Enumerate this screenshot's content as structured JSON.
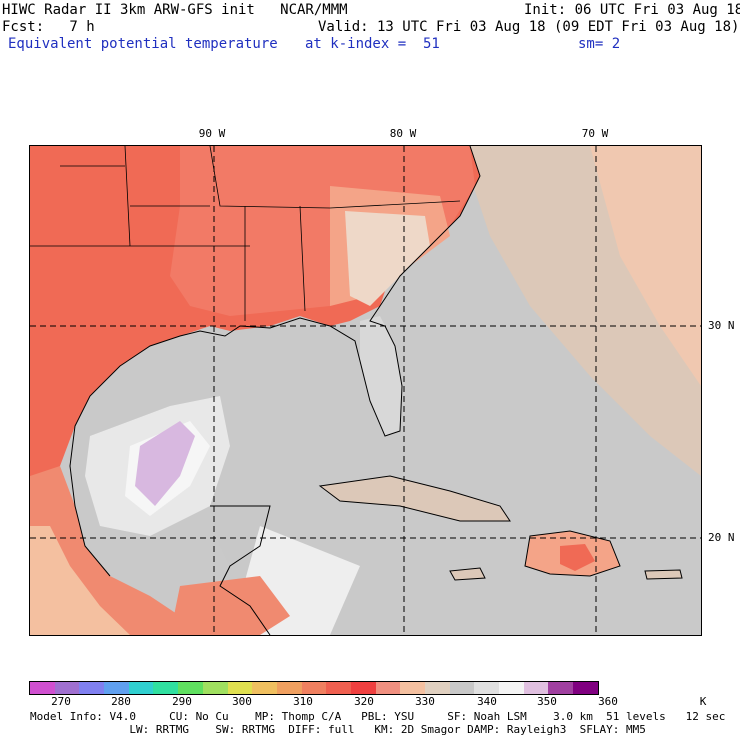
{
  "header": {
    "title": "HIWC Radar II 3km ARW-GFS init   NCAR/MMM",
    "init": "Init: 06 UTC Fri 03 Aug 18",
    "fcst": "Fcst:   7 h",
    "valid": "Valid: 13 UTC Fri 03 Aug 18 (09 EDT Fri 03 Aug 18)",
    "field": "Equivalent potential temperature",
    "level": "at k-index =  51",
    "smooth": "sm= 2"
  },
  "map": {
    "lon_labels": [
      "90 W",
      "80 W",
      "70 W"
    ],
    "lat_labels": [
      "30 N",
      "20 N"
    ]
  },
  "colorbar": {
    "colors": [
      "#d050d0",
      "#a070d0",
      "#8080f0",
      "#60a0f0",
      "#30d0d0",
      "#30e0a0",
      "#60e060",
      "#a0e060",
      "#e0e050",
      "#f0c060",
      "#f0a060",
      "#f08060",
      "#f06050",
      "#f04040",
      "#f09080",
      "#f4c0a0",
      "#e0d0c0",
      "#c8c8c8",
      "#e0e0e0",
      "#f4f4f4",
      "#e0c0e0",
      "#a040a0",
      "#800080"
    ],
    "tick_labels": [
      "270",
      "280",
      "290",
      "300",
      "310",
      "320",
      "330",
      "340",
      "350",
      "360"
    ],
    "unit": "K"
  },
  "footer": {
    "line1": "Model Info: V4.0     CU: No Cu    MP: Thomp C/A   PBL: YSU     SF: Noah LSM    3.0 km  51 levels   12 sec",
    "line2": "               LW: RRTMG    SW: RRTMG  DIFF: full   KM: 2D Smagor DAMP: Rayleigh3  SFLAY: MM5"
  }
}
